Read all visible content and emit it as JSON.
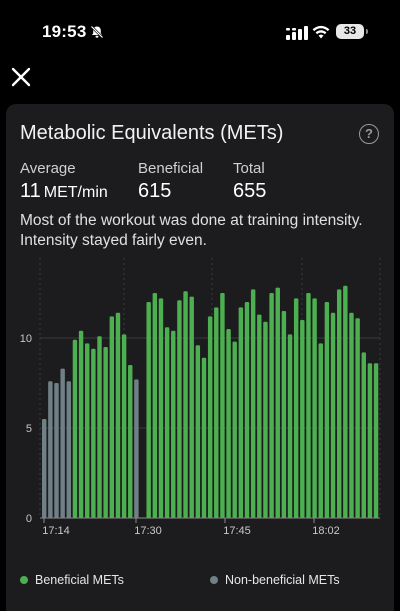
{
  "status_bar": {
    "time": "19:53",
    "battery": "33"
  },
  "colors": {
    "beneficial": "#4caf50",
    "non_beneficial": "#6f8087",
    "card": "#1c1c1e"
  },
  "card": {
    "title": "Metabolic Equivalents (METs)",
    "help": "?",
    "stats": {
      "average": {
        "label": "Average",
        "value": "11",
        "unit": "MET/min"
      },
      "beneficial": {
        "label": "Beneficial",
        "value": "615"
      },
      "total": {
        "label": "Total",
        "value": "655"
      }
    },
    "summary": "Most of the workout was done at training intensity. Intensity stayed fairly even."
  },
  "chart_data": {
    "type": "bar",
    "ylim": [
      0,
      14
    ],
    "y_ticks": [
      "0",
      "5",
      "10"
    ],
    "x_ticks": [
      "17:14",
      "17:30",
      "17:45",
      "18:02"
    ],
    "series": [
      {
        "name": "Beneficial METs",
        "color": "#4caf50"
      },
      {
        "name": "Non-beneficial METs",
        "color": "#6f8087"
      }
    ],
    "bars": [
      {
        "v": 5.5,
        "b": false
      },
      {
        "v": 7.6,
        "b": false
      },
      {
        "v": 7.5,
        "b": false
      },
      {
        "v": 8.3,
        "b": false
      },
      {
        "v": 7.6,
        "b": false
      },
      {
        "v": 9.9,
        "b": true
      },
      {
        "v": 10.4,
        "b": true
      },
      {
        "v": 9.7,
        "b": true
      },
      {
        "v": 9.4,
        "b": true
      },
      {
        "v": 10.1,
        "b": true
      },
      {
        "v": 9.5,
        "b": true
      },
      {
        "v": 11.2,
        "b": true
      },
      {
        "v": 11.4,
        "b": true
      },
      {
        "v": 10.2,
        "b": true
      },
      {
        "v": 8.5,
        "b": true
      },
      {
        "v": 7.7,
        "b": false
      },
      {
        "v": 0,
        "b": true
      },
      {
        "v": 12.0,
        "b": true
      },
      {
        "v": 12.5,
        "b": true
      },
      {
        "v": 12.2,
        "b": true
      },
      {
        "v": 10.6,
        "b": true
      },
      {
        "v": 10.4,
        "b": true
      },
      {
        "v": 12.1,
        "b": true
      },
      {
        "v": 12.6,
        "b": true
      },
      {
        "v": 12.3,
        "b": true
      },
      {
        "v": 9.6,
        "b": true
      },
      {
        "v": 8.9,
        "b": true
      },
      {
        "v": 11.2,
        "b": true
      },
      {
        "v": 11.7,
        "b": true
      },
      {
        "v": 12.5,
        "b": true
      },
      {
        "v": 10.5,
        "b": true
      },
      {
        "v": 9.8,
        "b": true
      },
      {
        "v": 11.7,
        "b": true
      },
      {
        "v": 12.0,
        "b": true
      },
      {
        "v": 12.7,
        "b": true
      },
      {
        "v": 11.3,
        "b": true
      },
      {
        "v": 10.9,
        "b": true
      },
      {
        "v": 12.5,
        "b": true
      },
      {
        "v": 12.8,
        "b": true
      },
      {
        "v": 11.5,
        "b": true
      },
      {
        "v": 10.2,
        "b": true
      },
      {
        "v": 12.2,
        "b": true
      },
      {
        "v": 11.0,
        "b": true
      },
      {
        "v": 12.5,
        "b": true
      },
      {
        "v": 12.2,
        "b": true
      },
      {
        "v": 9.7,
        "b": true
      },
      {
        "v": 12.0,
        "b": true
      },
      {
        "v": 11.4,
        "b": true
      },
      {
        "v": 12.7,
        "b": true
      },
      {
        "v": 12.9,
        "b": true
      },
      {
        "v": 11.4,
        "b": true
      },
      {
        "v": 11.1,
        "b": true
      },
      {
        "v": 9.2,
        "b": true
      },
      {
        "v": 8.6,
        "b": true
      },
      {
        "v": 8.6,
        "b": true
      }
    ]
  },
  "legend": {
    "beneficial": "Beneficial METs",
    "non_beneficial": "Non-beneficial METs"
  }
}
